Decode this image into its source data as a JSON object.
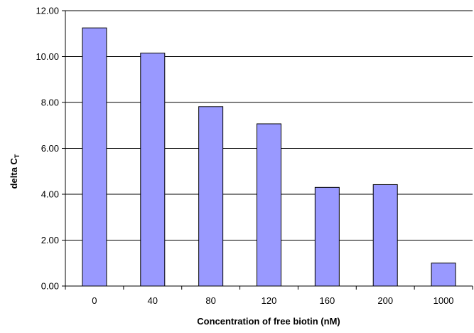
{
  "chart_data": {
    "type": "bar",
    "title": "",
    "xlabel": "Concentration of free biotin (nM)",
    "ylabel": "delta C",
    "ylabel_subscript": "T",
    "categories": [
      "0",
      "40",
      "80",
      "120",
      "160",
      "200",
      "1000"
    ],
    "series": [
      {
        "values": [
          11.25,
          10.15,
          7.82,
          7.07,
          4.3,
          4.42,
          1.0
        ]
      }
    ],
    "ylim": [
      0,
      12
    ],
    "yticks": [
      0,
      2,
      4,
      6,
      8,
      10,
      12
    ],
    "ytick_labels": [
      "0.00",
      "2.00",
      "4.00",
      "6.00",
      "8.00",
      "10.00",
      "12.00"
    ],
    "grid": "horizontal",
    "legend": "none",
    "colors": {
      "bar_fill": "#9999ff",
      "bar_stroke": "#000000",
      "grid": "#000000",
      "axis": "#000000",
      "background": "#ffffff"
    }
  }
}
